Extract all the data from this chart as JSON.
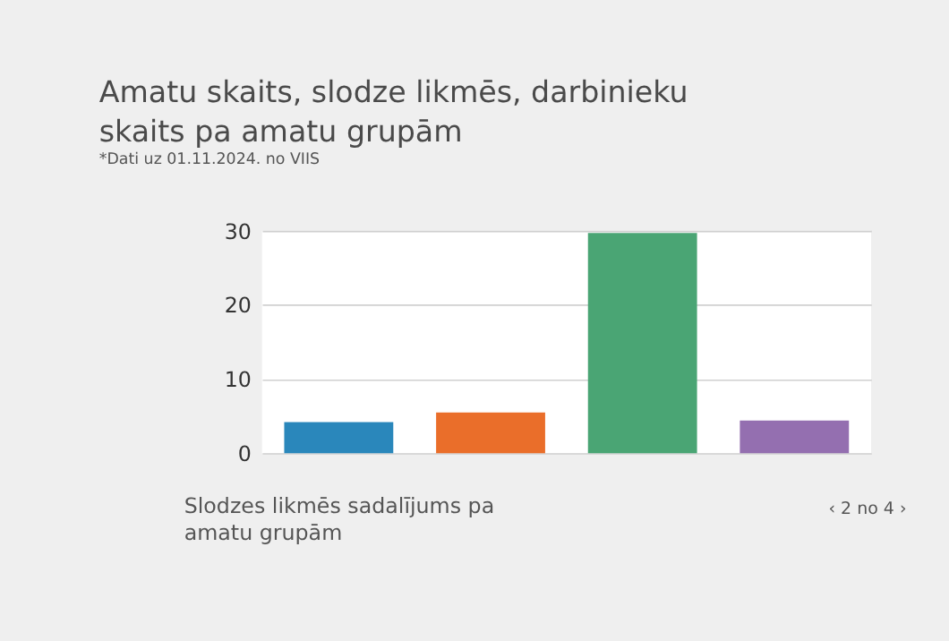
{
  "chart_data": {
    "type": "bar",
    "title": "Amatu skaits, slodze likmēs, darbinieku skaits pa amatu grupām",
    "subtitle": "*Dati uz 01.11.2024. no VIIS",
    "categories": [
      null,
      null,
      null,
      null
    ],
    "values": [
      4.2,
      5.5,
      29.7,
      4.4
    ],
    "colors": [
      "#2a87bb",
      "#ea6e2a",
      "#4aa574",
      "#946fb0"
    ],
    "ylim": [
      0,
      30
    ],
    "yticks": [
      0,
      10,
      20,
      30
    ],
    "grid": "y",
    "tick_labels": "y",
    "annotations": [
      "Slodzes likmēs sadalījums pa amatu grupām",
      "‹    2 no 4    ›"
    ]
  }
}
